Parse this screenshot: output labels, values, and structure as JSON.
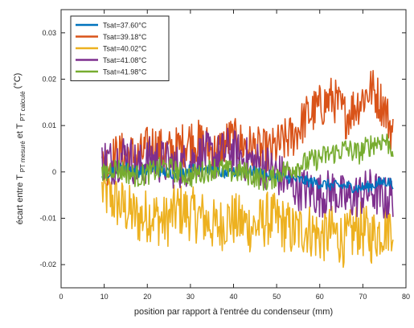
{
  "chart_data": {
    "type": "line",
    "title": "",
    "xlabel": "position par rapport à l'entrée du condenseur (mm)",
    "ylabel": "écart entre T_PT mesuré et T_PT calculé (°C)",
    "ylabel_parts": {
      "prefix": "écart entre T",
      "sub1": "PT mesuré",
      "mid": " et T",
      "sub2": "PT calculé",
      "suffix": "(°C)"
    },
    "xlim": [
      0,
      80
    ],
    "ylim": [
      -0.025,
      0.035
    ],
    "xticks": [
      0,
      10,
      20,
      30,
      40,
      50,
      60,
      70,
      80
    ],
    "yticks": [
      -0.02,
      -0.01,
      0,
      0.01,
      0.02,
      0.03
    ],
    "ytick_labels": [
      "-0.02",
      "-0.01",
      "0",
      "0.01",
      "0.02",
      "0.03"
    ],
    "grid": false,
    "legend_position": "top-left",
    "x_range": [
      9.5,
      77
    ],
    "series": [
      {
        "name": "Tsat=37.60°C",
        "color": "#0072BD",
        "x": [
          9.5,
          12,
          15,
          18,
          21,
          24,
          27,
          30,
          33,
          36,
          39,
          42,
          45,
          48,
          51,
          54,
          57,
          60,
          63,
          66,
          69,
          72,
          75,
          77
        ],
        "values": [
          -0.001,
          0.0005,
          0.001,
          0.0,
          0.0008,
          0.0,
          -0.0005,
          0.0005,
          0.001,
          0.0,
          -0.0005,
          0.0005,
          0.0,
          -0.0008,
          -0.001,
          -0.0015,
          -0.002,
          -0.0025,
          -0.003,
          -0.003,
          -0.0035,
          -0.003,
          -0.002,
          -0.0025
        ]
      },
      {
        "name": "Tsat=39.18°C",
        "color": "#D95319",
        "x": [
          9.5,
          12,
          15,
          18,
          21,
          24,
          27,
          30,
          33,
          36,
          39,
          42,
          45,
          48,
          51,
          54,
          57,
          60,
          63,
          66,
          69,
          72,
          75,
          77
        ],
        "values": [
          0.001,
          0.003,
          0.004,
          0.003,
          0.006,
          0.004,
          0.005,
          0.007,
          0.006,
          0.004,
          0.007,
          0.006,
          0.005,
          0.004,
          0.006,
          0.008,
          0.012,
          0.014,
          0.016,
          0.012,
          0.015,
          0.018,
          0.014,
          0.008
        ]
      },
      {
        "name": "Tsat=40.02°C",
        "color": "#EDB120",
        "x": [
          9.5,
          12,
          15,
          18,
          21,
          24,
          27,
          30,
          33,
          36,
          39,
          42,
          45,
          48,
          51,
          54,
          57,
          60,
          63,
          66,
          69,
          72,
          75,
          77
        ],
        "values": [
          -0.004,
          -0.006,
          -0.008,
          -0.01,
          -0.009,
          -0.011,
          -0.008,
          -0.009,
          -0.01,
          -0.012,
          -0.01,
          -0.011,
          -0.012,
          -0.01,
          -0.011,
          -0.013,
          -0.012,
          -0.014,
          -0.013,
          -0.015,
          -0.012,
          -0.014,
          -0.012,
          -0.011
        ]
      },
      {
        "name": "Tsat=41.08°C",
        "color": "#7E2F8E",
        "x": [
          9.5,
          12,
          15,
          18,
          21,
          24,
          27,
          30,
          33,
          36,
          39,
          42,
          45,
          48,
          51,
          54,
          57,
          60,
          63,
          66,
          69,
          72,
          75,
          77
        ],
        "values": [
          0.003,
          0.002,
          0.004,
          0.001,
          0.003,
          0.002,
          0.001,
          0.002,
          0.004,
          0.003,
          0.005,
          0.003,
          0.002,
          0.001,
          -0.001,
          -0.003,
          -0.004,
          -0.005,
          -0.004,
          -0.006,
          -0.005,
          -0.004,
          -0.006,
          -0.005
        ]
      },
      {
        "name": "Tsat=41.98°C",
        "color": "#77AC30",
        "x": [
          9.5,
          12,
          15,
          18,
          21,
          24,
          27,
          30,
          33,
          36,
          39,
          42,
          45,
          48,
          51,
          54,
          57,
          60,
          63,
          66,
          69,
          72,
          75,
          77
        ],
        "values": [
          -0.001,
          0.001,
          0.0,
          -0.001,
          0.0,
          0.001,
          0.0,
          -0.001,
          0.0,
          0.001,
          0.0,
          0.0,
          -0.001,
          -0.002,
          0.0,
          0.001,
          0.002,
          0.003,
          0.004,
          0.005,
          0.004,
          0.006,
          0.007,
          0.005
        ]
      }
    ],
    "noise_amplitudes": [
      0.0012,
      0.005,
      0.006,
      0.005,
      0.0025
    ]
  }
}
